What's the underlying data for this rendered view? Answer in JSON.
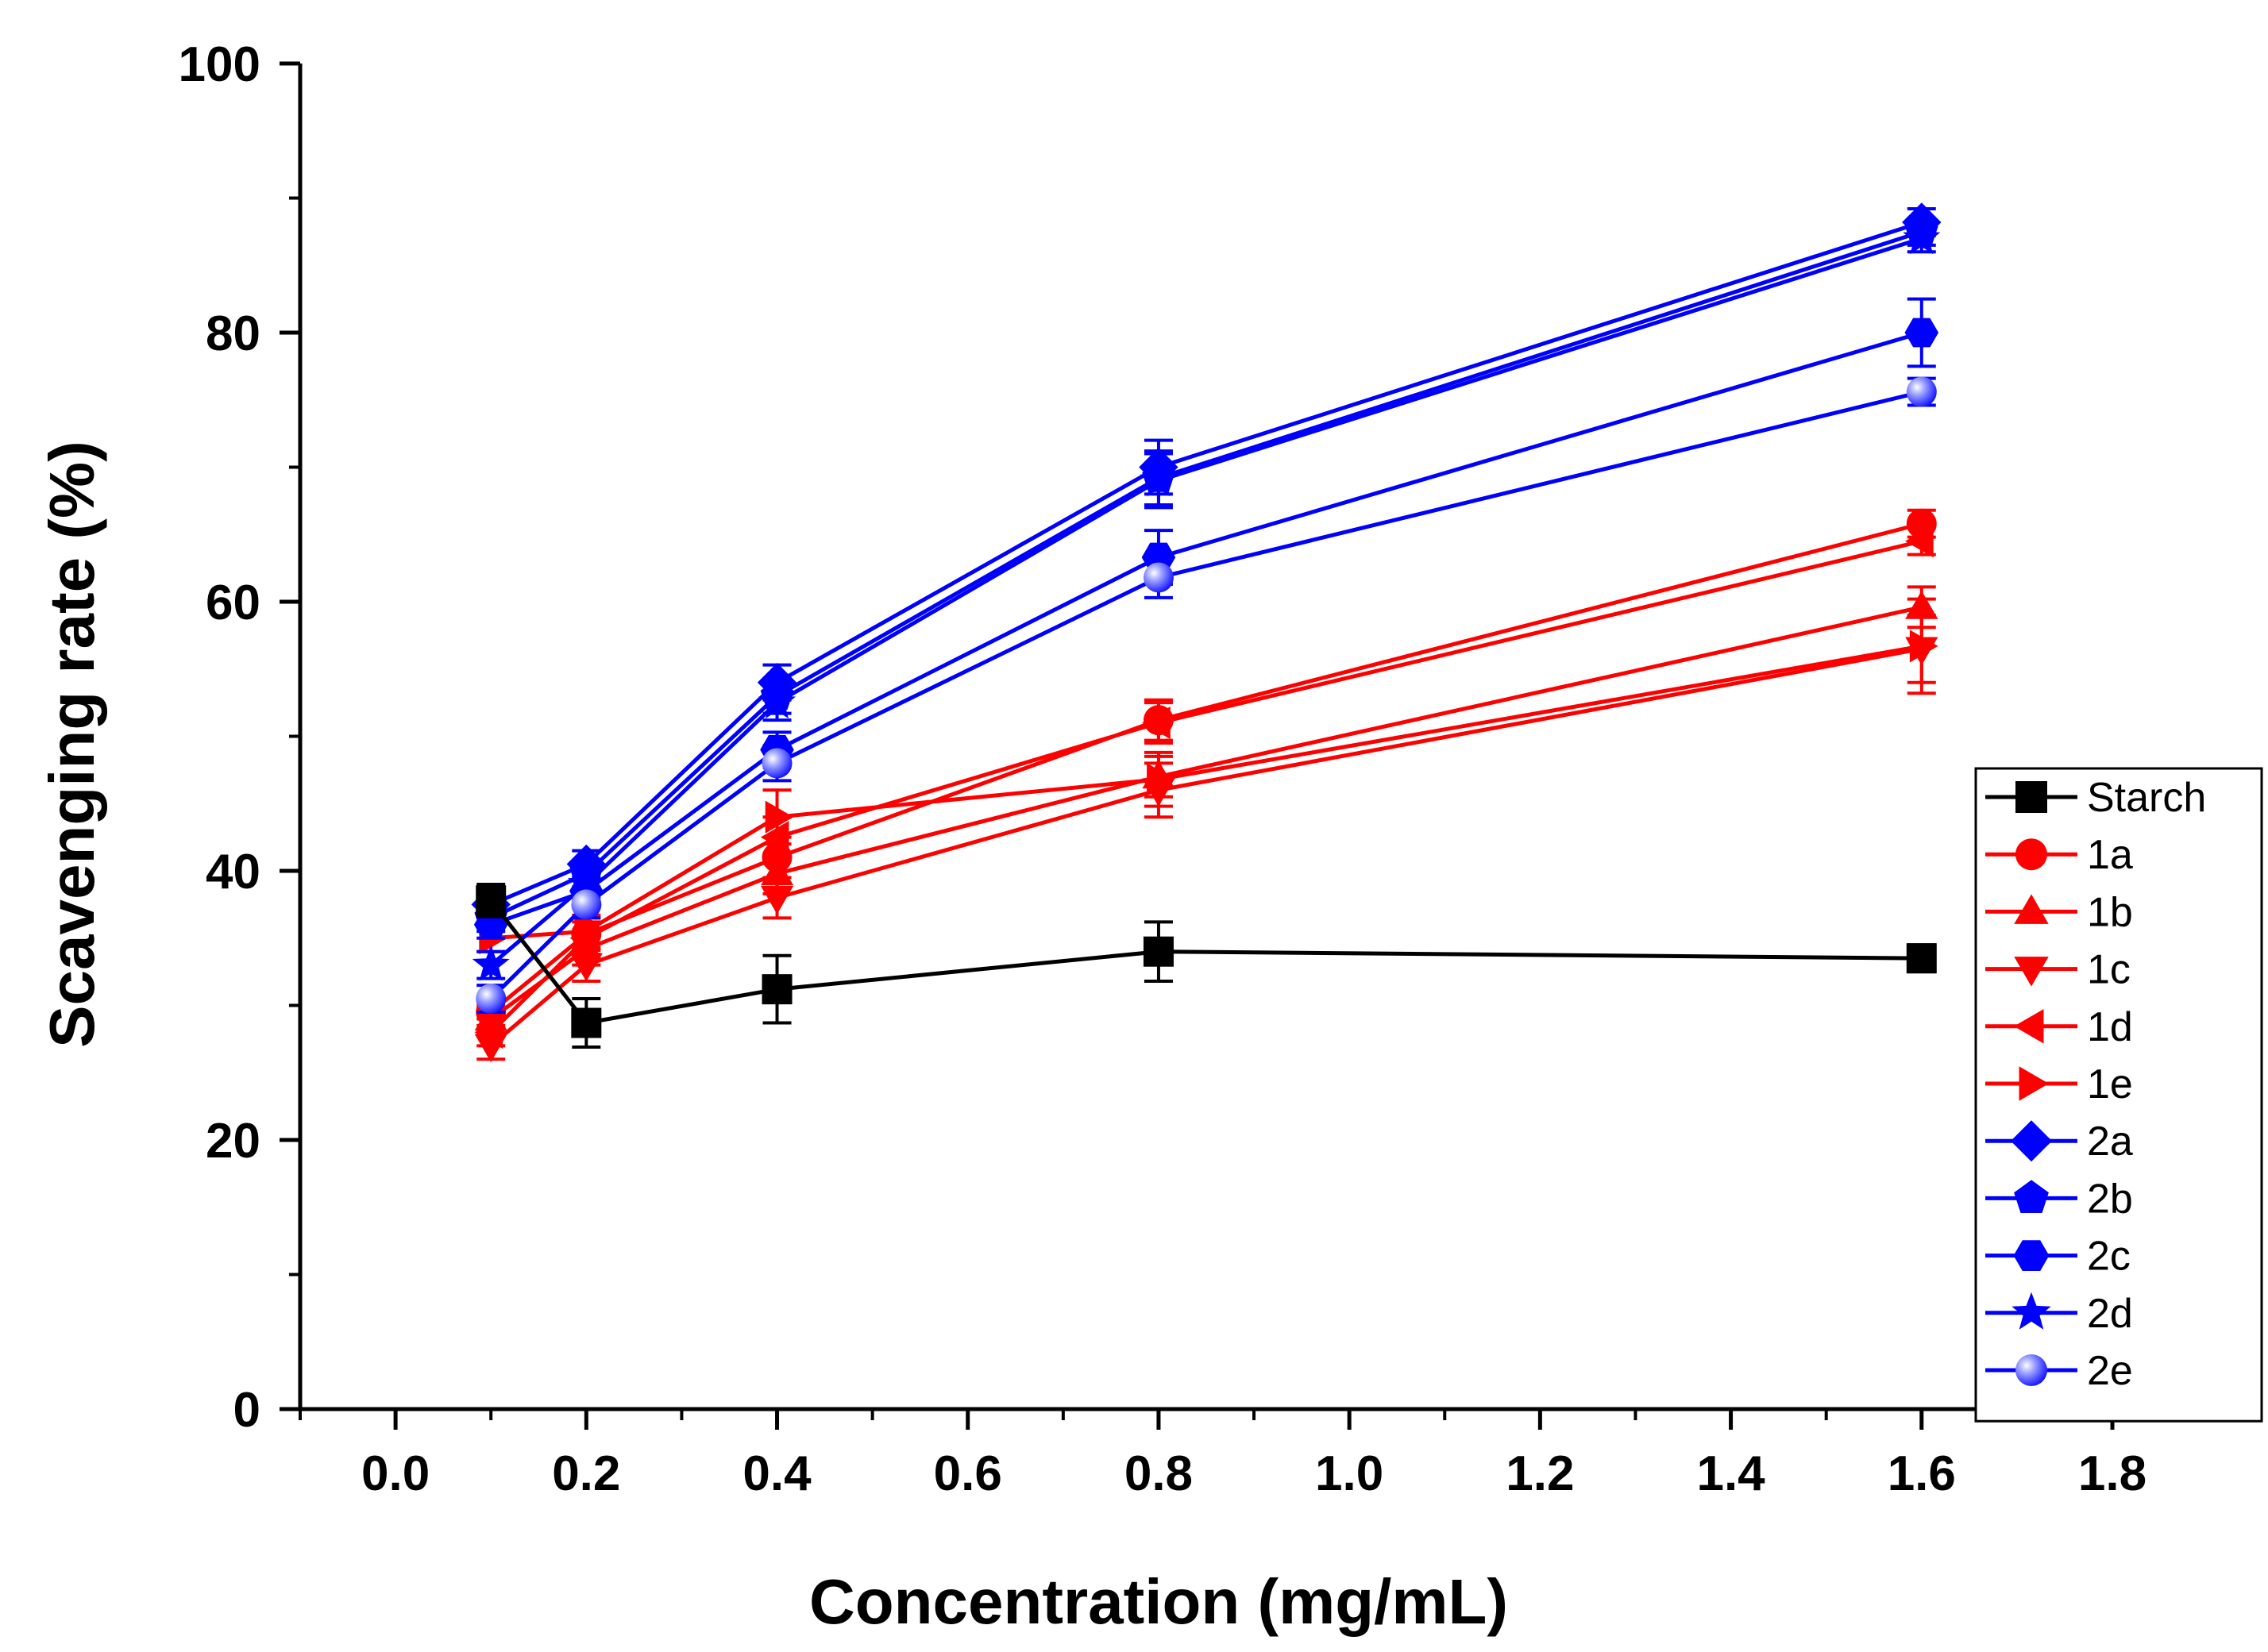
{
  "chart_data": {
    "type": "line",
    "title": "",
    "xlabel": "Concentration (mg/mL)",
    "ylabel": "Scavenging rate (%)",
    "xlim": [
      -0.1,
      1.8
    ],
    "ylim": [
      0,
      100
    ],
    "xticks": [
      0.0,
      0.2,
      0.4,
      0.6,
      0.8,
      1.0,
      1.2,
      1.4,
      1.6,
      1.8
    ],
    "xtick_labels": [
      "0.0",
      "0.2",
      "0.4",
      "0.6",
      "0.8",
      "1.0",
      "1.2",
      "1.4",
      "1.6",
      "1.8"
    ],
    "yticks": [
      0,
      20,
      40,
      60,
      80,
      100
    ],
    "ytick_labels": [
      "0",
      "20",
      "40",
      "60",
      "80",
      "100"
    ],
    "legend_position": "bottom-right",
    "x": [
      0.1,
      0.2,
      0.4,
      0.8,
      1.6
    ],
    "series": [
      {
        "name": "Starch",
        "color": "#000000",
        "marker": "square",
        "values": [
          37.8,
          28.7,
          31.2,
          34.0,
          33.5
        ],
        "errors": [
          1.2,
          1.8,
          2.5,
          2.2,
          1.0
        ]
      },
      {
        "name": "1a",
        "color": "#ff0000",
        "marker": "circle",
        "values": [
          29.5,
          35.3,
          41.0,
          51.2,
          65.8
        ],
        "errors": [
          1.0,
          1.2,
          1.5,
          1.5,
          1.0
        ]
      },
      {
        "name": "1b",
        "color": "#ff0000",
        "marker": "triangle-up",
        "values": [
          29.0,
          34.2,
          39.8,
          47.0,
          59.6
        ],
        "errors": [
          1.0,
          1.2,
          1.5,
          1.5,
          1.5
        ]
      },
      {
        "name": "1c",
        "color": "#ff0000",
        "marker": "triangle-down",
        "values": [
          27.0,
          33.0,
          38.0,
          46.0,
          56.5
        ],
        "errors": [
          1.0,
          1.2,
          1.5,
          2.0,
          2.5
        ]
      },
      {
        "name": "1d",
        "color": "#ff0000",
        "marker": "triangle-left",
        "values": [
          28.0,
          35.0,
          42.5,
          51.0,
          64.5
        ],
        "errors": [
          1.0,
          1.2,
          1.5,
          1.5,
          1.0
        ]
      },
      {
        "name": "1e",
        "color": "#ff0000",
        "marker": "triangle-right",
        "values": [
          35.0,
          35.5,
          44.0,
          46.8,
          56.7
        ],
        "errors": [
          1.0,
          1.2,
          2.0,
          2.0,
          3.5
        ]
      },
      {
        "name": "2a",
        "color": "#0000ff",
        "marker": "diamond",
        "values": [
          37.5,
          40.5,
          54.0,
          70.0,
          88.2
        ],
        "errors": [
          1.0,
          1.0,
          1.3,
          2.0,
          1.0
        ]
      },
      {
        "name": "2b",
        "color": "#0000ff",
        "marker": "pentagon",
        "values": [
          36.5,
          39.8,
          53.0,
          69.2,
          87.5
        ],
        "errors": [
          1.0,
          1.0,
          1.3,
          2.0,
          1.0
        ]
      },
      {
        "name": "2c",
        "color": "#0000ff",
        "marker": "hexagon",
        "values": [
          36.0,
          38.5,
          49.0,
          63.3,
          80.0
        ],
        "errors": [
          1.0,
          1.0,
          1.3,
          2.0,
          2.5
        ]
      },
      {
        "name": "2d",
        "color": "#0000ff",
        "marker": "star",
        "values": [
          33.0,
          39.0,
          52.5,
          69.0,
          87.0
        ],
        "errors": [
          1.0,
          1.0,
          1.3,
          2.0,
          1.0
        ]
      },
      {
        "name": "2e",
        "color": "#0000ff",
        "marker": "sphere",
        "values": [
          30.5,
          37.5,
          48.0,
          61.8,
          75.6
        ],
        "errors": [
          1.0,
          1.0,
          1.3,
          1.5,
          1.0
        ]
      }
    ]
  }
}
